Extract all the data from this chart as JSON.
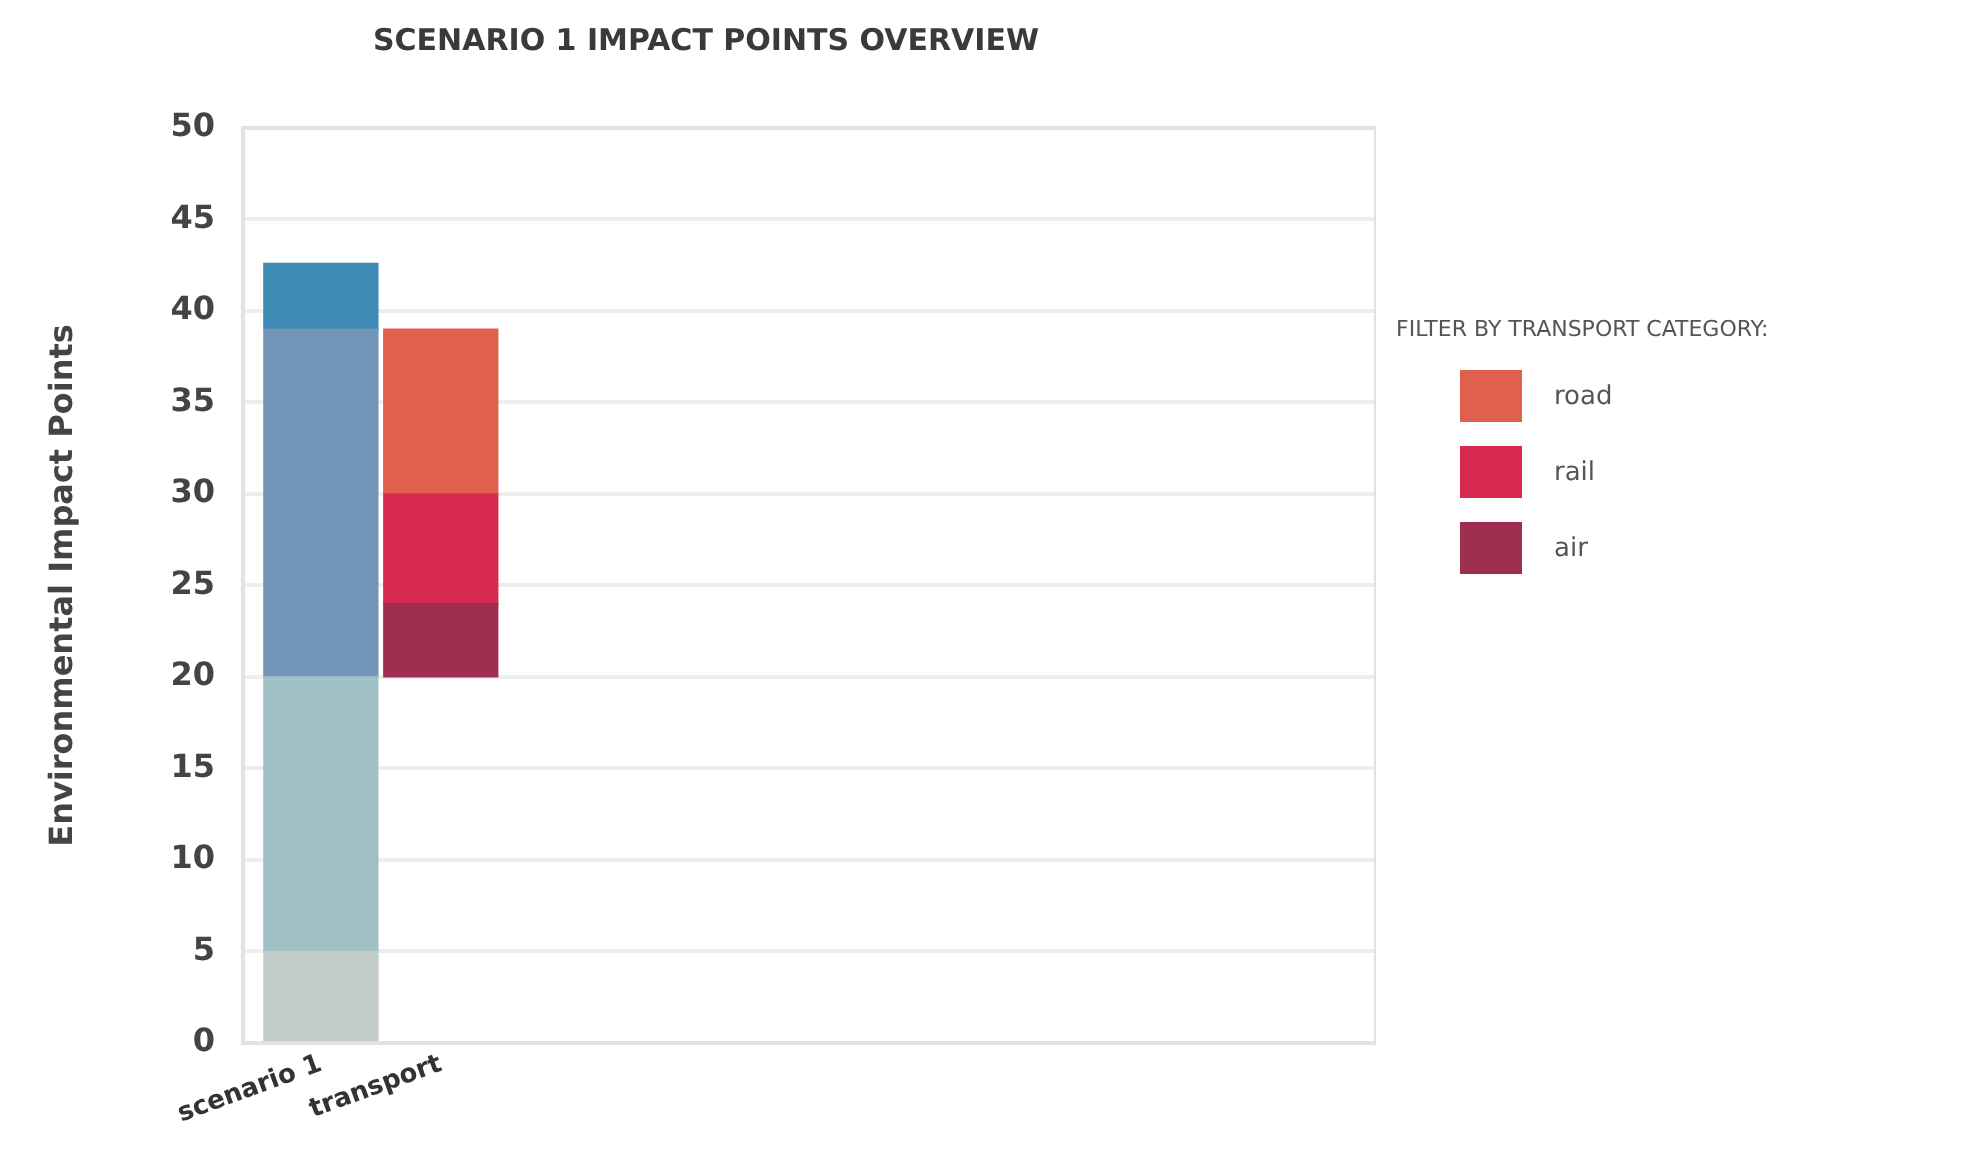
{
  "chart_data": {
    "type": "bar",
    "title": "SCENARIO 1 IMPACT POINTS OVERVIEW",
    "ylabel": "Environmental Impact Points",
    "legend_title": "FILTER BY TRANSPORT CATEGORY:",
    "categories": [
      "scenario 1",
      "transport"
    ],
    "series": [
      {
        "color": "#c2ccc9",
        "base": [
          0,
          null
        ],
        "values": [
          5,
          null
        ]
      },
      {
        "color": "#a0c0c6",
        "base": [
          5,
          null
        ],
        "values": [
          15,
          null
        ]
      },
      {
        "color": "#7396b8",
        "base": [
          20,
          null
        ],
        "values": [
          19,
          null
        ]
      },
      {
        "color": "#3d8bb5",
        "base": [
          39,
          null
        ],
        "values": [
          3.6,
          null
        ]
      },
      {
        "name": "air",
        "color": "#9e2f4e",
        "base": [
          null,
          20
        ],
        "values": [
          null,
          4
        ]
      },
      {
        "name": "rail",
        "color": "#d62a4f",
        "base": [
          null,
          24
        ],
        "values": [
          null,
          6
        ]
      },
      {
        "name": "road",
        "color": "#de604d",
        "base": [
          null,
          30
        ],
        "values": [
          null,
          9
        ]
      }
    ],
    "ylim": [
      0,
      50
    ],
    "yticks": [
      0,
      5,
      10,
      15,
      20,
      25,
      30,
      35,
      40,
      45,
      50
    ],
    "grid": "y",
    "legend": "right"
  }
}
